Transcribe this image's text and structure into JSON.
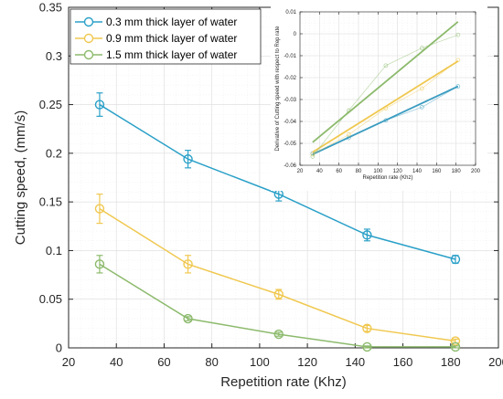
{
  "chart_data": [
    {
      "type": "line",
      "xlabel": "Repetition rate (Khz)",
      "ylabel": "Cutting speed, (mm/s)",
      "xlim": [
        20,
        200
      ],
      "ylim": [
        0,
        0.35
      ],
      "xticks": [
        "20",
        "40",
        "60",
        "80",
        "100",
        "120",
        "140",
        "160",
        "180",
        "200"
      ],
      "yticks": [
        "0",
        "0.05",
        "0.1",
        "0.15",
        "0.2",
        "0.25",
        "0.3",
        "0.35"
      ],
      "grid": true,
      "legend_position": "top-left",
      "x": [
        33,
        70,
        108,
        145,
        182
      ],
      "series": [
        {
          "name": "0.3 mm thick layer of water",
          "color": "#2aa0c8",
          "values": [
            0.25,
            0.194,
            0.158,
            0.116,
            0.091
          ],
          "error": [
            0.012,
            0.009,
            0.007,
            0.006,
            0.004
          ]
        },
        {
          "name": "0.9 mm thick layer of water",
          "color": "#f0c850",
          "values": [
            0.143,
            0.086,
            0.055,
            0.02,
            0.007
          ],
          "error": [
            0.015,
            0.009,
            0.005,
            0.003,
            0.002
          ]
        },
        {
          "name": "1.5 mm thick layer of water",
          "color": "#8cba6c",
          "values": [
            0.086,
            0.03,
            0.014,
            0.001,
            0.001
          ],
          "error": [
            0.009,
            0.002,
            0.002,
            0.001,
            0.001
          ]
        }
      ]
    },
    {
      "type": "line",
      "xlabel": "Repetition rate (Khz)",
      "ylabel": "Derivative of Cutting speed with respect to Rep rate",
      "xlim": [
        20,
        200
      ],
      "ylim": [
        -0.06,
        0.01
      ],
      "xticks": [
        "20",
        "40",
        "60",
        "80",
        "100",
        "120",
        "140",
        "160",
        "180",
        "200"
      ],
      "yticks": [
        "-0.06",
        "-0.05",
        "-0.04",
        "-0.03",
        "-0.02",
        "-0.01",
        "0",
        "0.01"
      ],
      "grid": true,
      "x": [
        33,
        70,
        108,
        145,
        182
      ],
      "series": [
        {
          "color": "#3a9cc0",
          "values": [
            -0.0545,
            -0.0475,
            -0.0395,
            -0.0335,
            -0.024
          ],
          "fit": [
            [
              33,
              -0.055
            ],
            [
              182,
              -0.024
            ]
          ]
        },
        {
          "color": "#f0c850",
          "values": [
            -0.055,
            -0.046,
            -0.034,
            -0.025,
            -0.012
          ],
          "fit": [
            [
              33,
              -0.054
            ],
            [
              182,
              -0.0125
            ]
          ]
        },
        {
          "color": "#8cba6c",
          "values": [
            -0.056,
            -0.035,
            -0.0145,
            -0.0065,
            -0.0005
          ],
          "fit": [
            [
              33,
              -0.0495
            ],
            [
              182,
              0.0055
            ]
          ]
        }
      ]
    }
  ]
}
